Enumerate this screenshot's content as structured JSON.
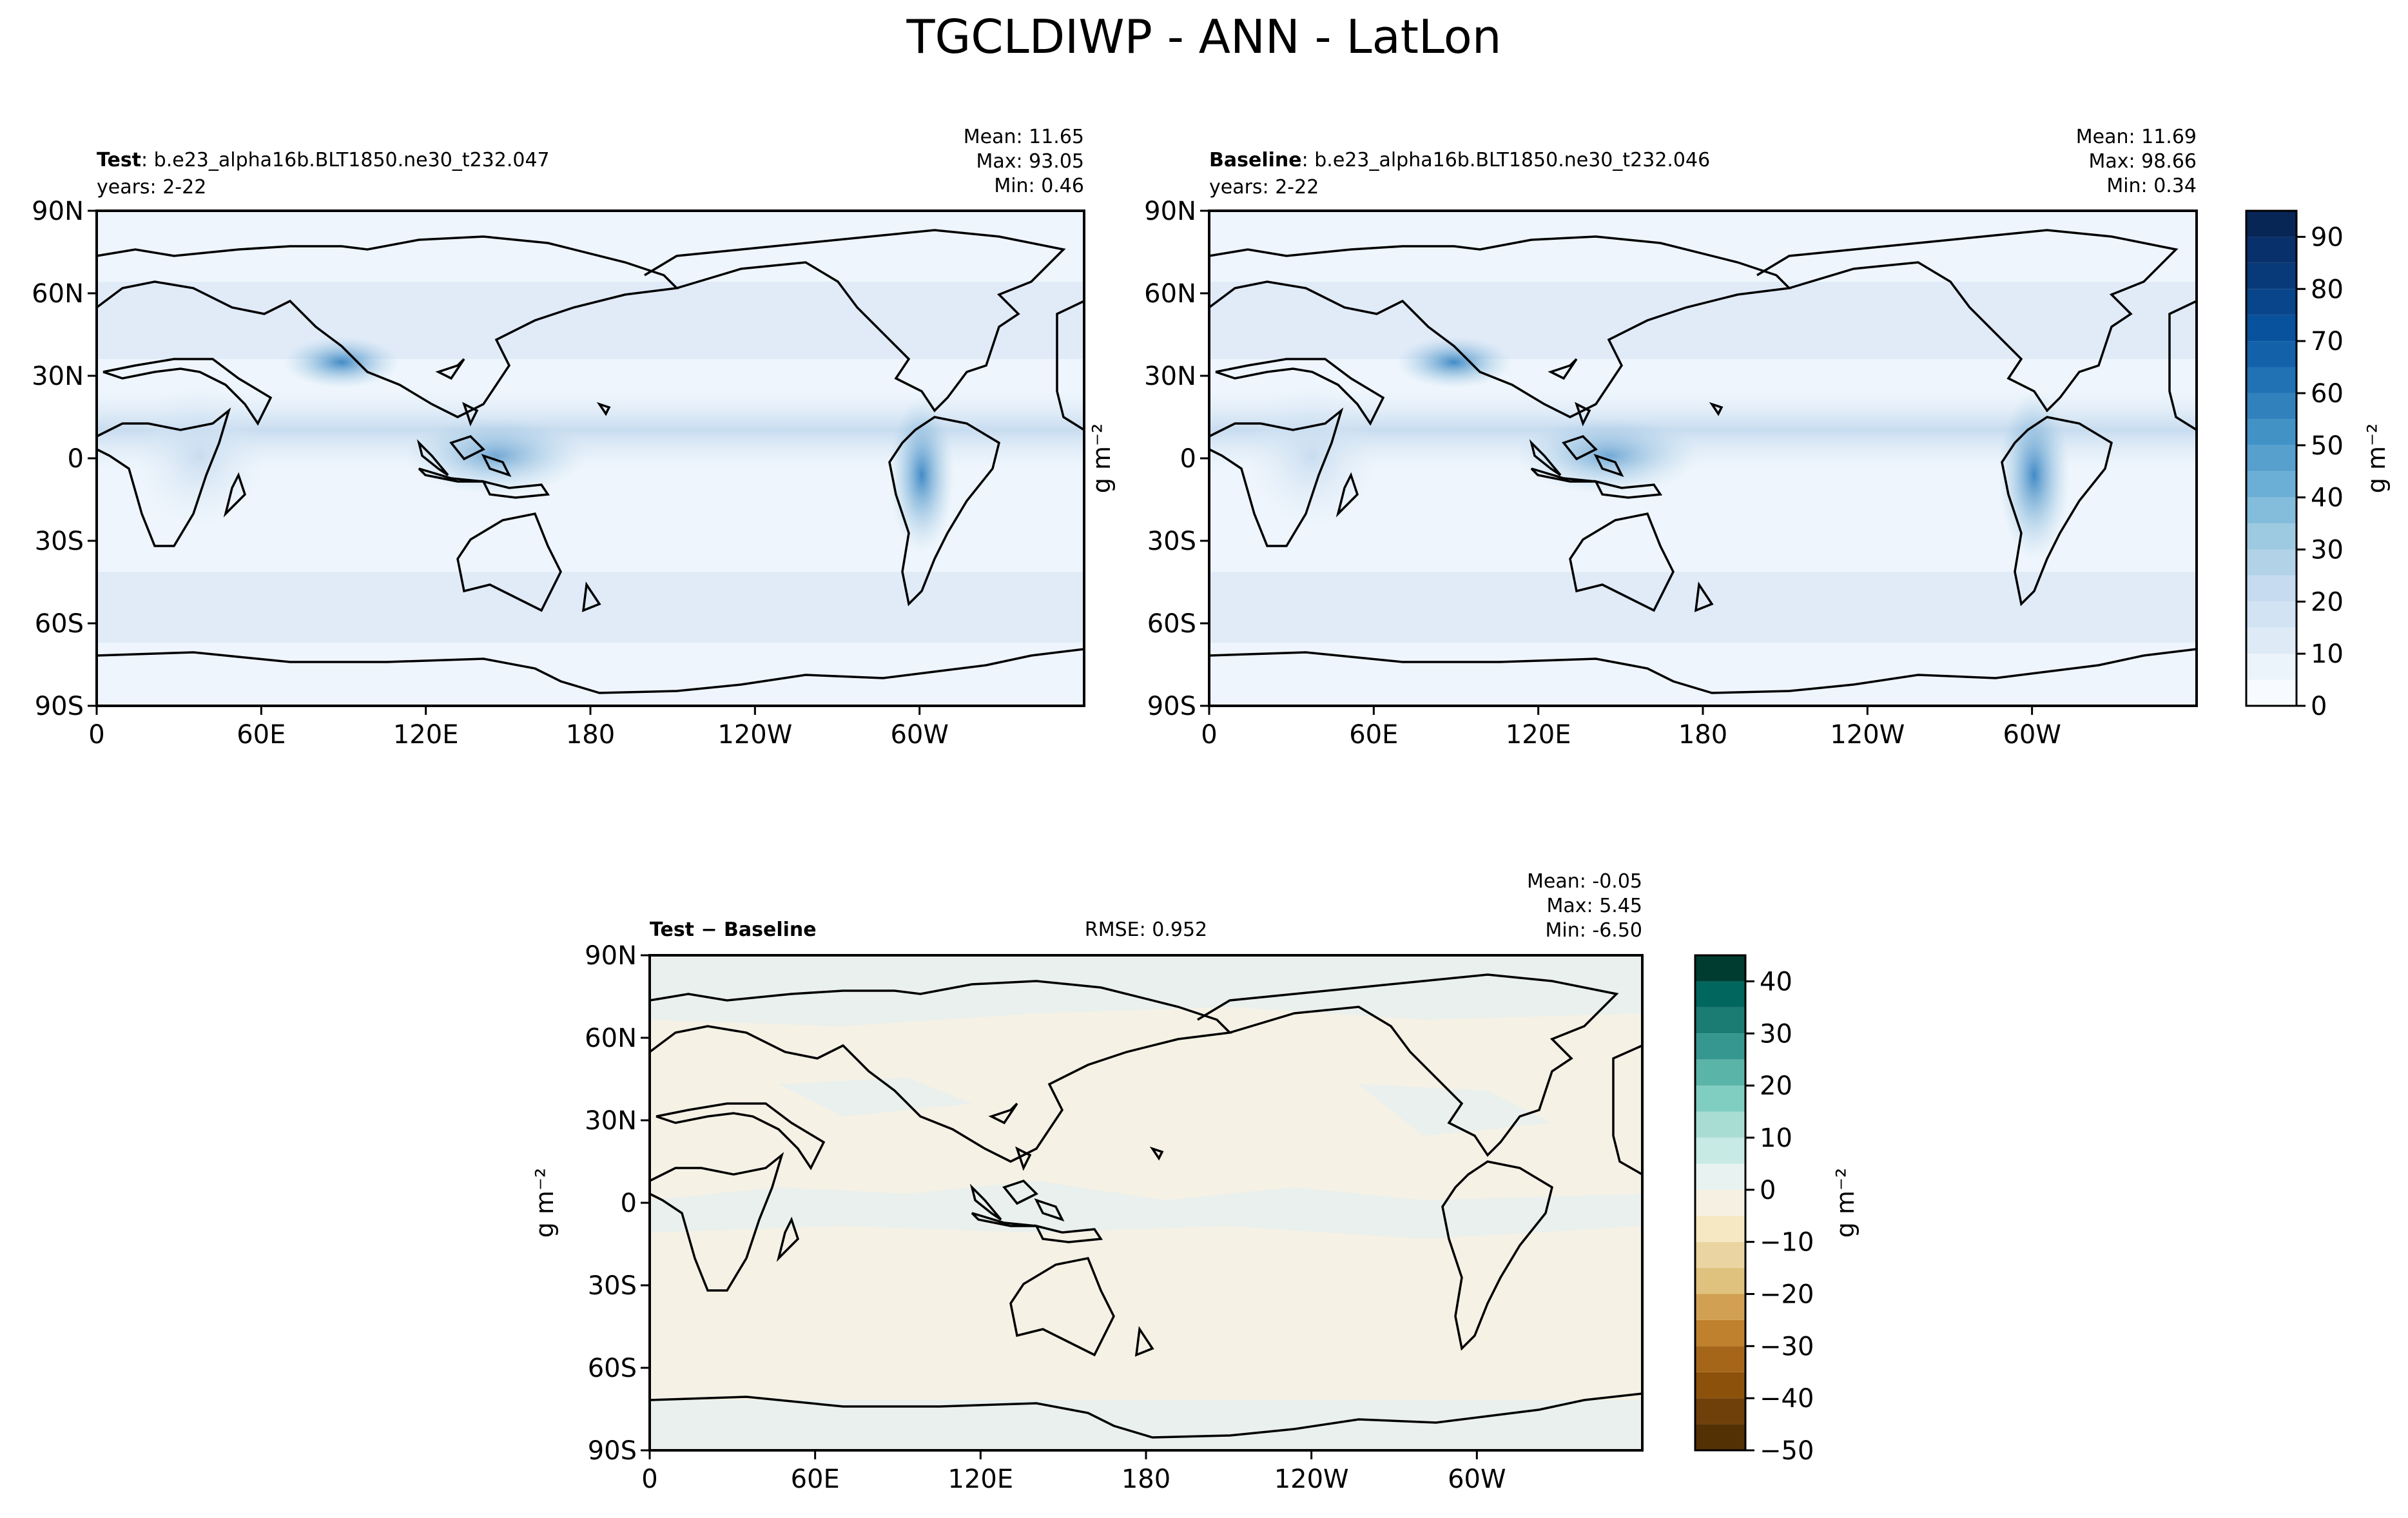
{
  "figure_title": "TGCLDIWP - ANN - LatLon",
  "chart_data": [
    {
      "type": "heatmap",
      "id": "test",
      "label_bold": "Test",
      "label_text": ": b.e23_alpha16b.BLT1850.ne30_t232.047",
      "years": "years: 2-22",
      "stats": [
        "Mean: 11.65",
        "Max: 93.05",
        "Min:  0.46"
      ],
      "xticks": [
        "0",
        "60E",
        "120E",
        "180",
        "120W",
        "60W"
      ],
      "yticks": [
        "90N",
        "60N",
        "30N",
        "0",
        "30S",
        "60S",
        "90S"
      ],
      "xlim": [
        0,
        360
      ],
      "ylim": [
        -90,
        90
      ]
    },
    {
      "type": "heatmap",
      "id": "baseline",
      "label_bold": "Baseline",
      "label_text": ": b.e23_alpha16b.BLT1850.ne30_t232.046",
      "years": "years: 2-22",
      "stats": [
        "Mean: 11.69",
        "Max: 98.66",
        "Min:  0.34"
      ],
      "xticks": [
        "0",
        "60E",
        "120E",
        "180",
        "120W",
        "60W"
      ],
      "yticks": [
        "90N",
        "60N",
        "30N",
        "0",
        "30S",
        "60S",
        "90S"
      ],
      "ylabel": "g m⁻²",
      "xlim": [
        0,
        360
      ],
      "ylim": [
        -90,
        90
      ],
      "colorbar": {
        "label": "g m⁻²",
        "range": [
          0,
          95
        ],
        "ticks": [
          "0",
          "10",
          "20",
          "30",
          "40",
          "50",
          "60",
          "70",
          "80",
          "90"
        ],
        "levels": [
          0,
          5,
          10,
          15,
          20,
          25,
          30,
          35,
          40,
          45,
          50,
          55,
          60,
          65,
          70,
          75,
          80,
          85,
          90,
          95
        ],
        "colors": [
          "#f7fbff",
          "#ebf3fb",
          "#deebf7",
          "#d2e3f3",
          "#c6dbef",
          "#b2d2e8",
          "#9ecae1",
          "#84bcdb",
          "#6baed6",
          "#57a0ce",
          "#4292c6",
          "#3181bd",
          "#2171b5",
          "#1361a9",
          "#08519c",
          "#08458a",
          "#083a7a",
          "#08306b",
          "#072656"
        ]
      }
    },
    {
      "type": "heatmap",
      "id": "diff",
      "label_bold": "Test − Baseline",
      "rmse": "RMSE: 0.952",
      "stats": [
        "Mean: -0.05",
        "Max:  5.45",
        "Min: -6.50"
      ],
      "xticks": [
        "0",
        "60E",
        "120E",
        "180",
        "120W",
        "60W"
      ],
      "yticks": [
        "90N",
        "60N",
        "30N",
        "0",
        "30S",
        "60S",
        "90S"
      ],
      "ylabel": "g m⁻²",
      "xlim": [
        0,
        360
      ],
      "ylim": [
        -90,
        90
      ],
      "colorbar": {
        "label": "g m⁻²",
        "range": [
          -50,
          45
        ],
        "ticks": [
          "−50",
          "−40",
          "−30",
          "−20",
          "−10",
          "0",
          "10",
          "20",
          "30",
          "40"
        ],
        "levels": [
          -50,
          -45,
          -40,
          -35,
          -30,
          -25,
          -20,
          -15,
          -10,
          -5,
          0,
          5,
          10,
          15,
          20,
          25,
          30,
          35,
          40,
          45
        ],
        "colors": [
          "#543005",
          "#6f400a",
          "#8c510a",
          "#a5661a",
          "#bf812d",
          "#d1a052",
          "#dfc27d",
          "#eaD5a2",
          "#f6e8c3",
          "#f5f0e2",
          "#e8f2f0",
          "#c7eae5",
          "#a8ddd4",
          "#80cdc1",
          "#5ab4a8",
          "#35978f",
          "#1a7c73",
          "#01665e",
          "#003c30"
        ]
      }
    }
  ]
}
